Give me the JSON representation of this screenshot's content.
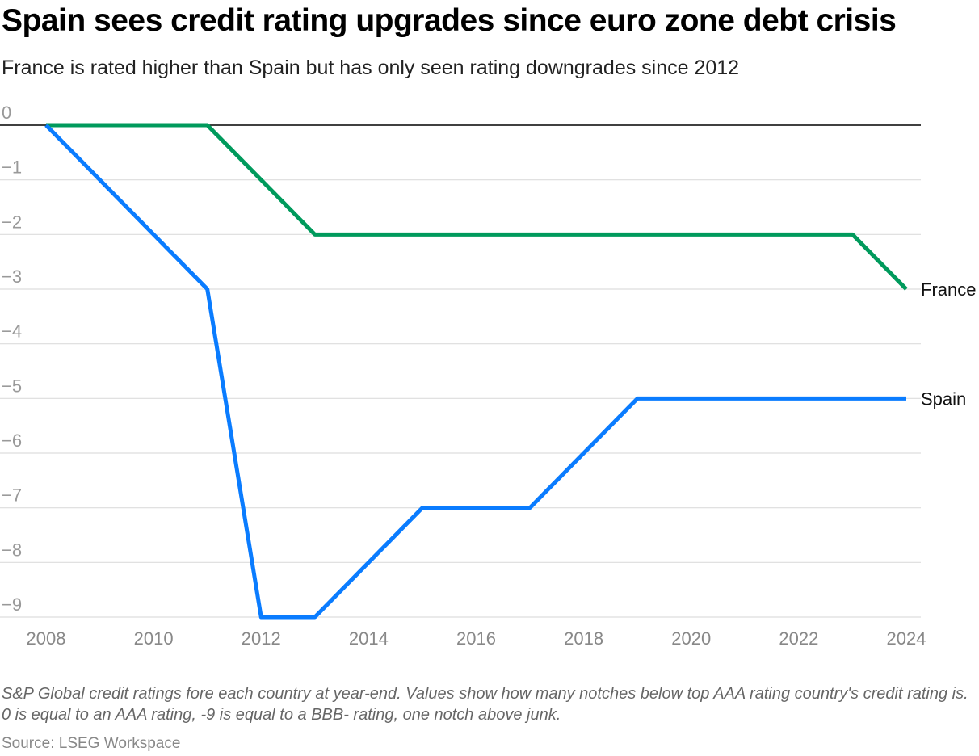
{
  "chart_data": {
    "type": "line",
    "title": "Spain sees credit rating upgrades since euro zone debt crisis",
    "subtitle": "France is rated higher than Spain but has only seen rating downgrades since 2012",
    "xlabel": "",
    "ylabel": "",
    "xlim": [
      2008,
      2024
    ],
    "ylim": [
      -9,
      0
    ],
    "x_ticks": [
      "2008",
      "2010",
      "2012",
      "2014",
      "2016",
      "2018",
      "2020",
      "2022",
      "2024"
    ],
    "y_ticks": [
      "0",
      "−1",
      "−2",
      "−3",
      "−4",
      "−5",
      "−6",
      "−7",
      "−8",
      "−9"
    ],
    "grid": true,
    "legend": "direct labels at line ends (right)",
    "series": [
      {
        "name": "France",
        "color": "#009a5c",
        "points": [
          [
            2008,
            0
          ],
          [
            2011,
            0
          ],
          [
            2013,
            -2
          ],
          [
            2023,
            -2
          ],
          [
            2024,
            -3
          ]
        ]
      },
      {
        "name": "Spain",
        "color": "#0a7cff",
        "points": [
          [
            2008,
            0
          ],
          [
            2011,
            -3
          ],
          [
            2012,
            -9
          ],
          [
            2013,
            -9
          ],
          [
            2015,
            -7
          ],
          [
            2017,
            -7
          ],
          [
            2019,
            -5
          ],
          [
            2024,
            -5
          ]
        ]
      }
    ]
  },
  "note": "S&P Global credit ratings fore each country at year-end. Values show how many notches below top AAA rating country's credit rating is. 0 is equal to an AAA rating, -9 is equal to a BBB- rating, one notch above junk.",
  "source": "Source: LSEG Workspace"
}
